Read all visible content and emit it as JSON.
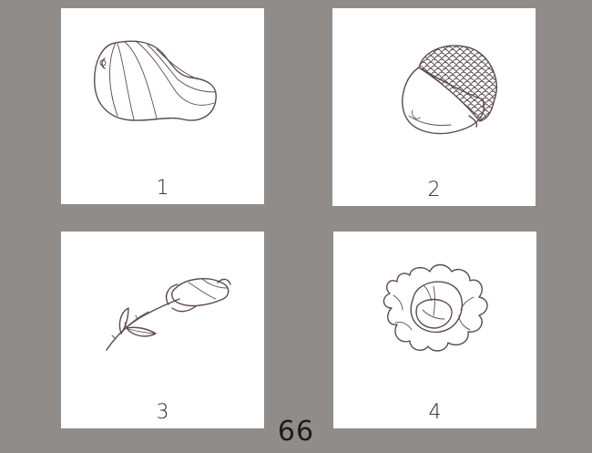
{
  "cards": [
    {
      "number": "1",
      "illustration": "gourd-icon"
    },
    {
      "number": "2",
      "illustration": "acorn-icon"
    },
    {
      "number": "3",
      "illustration": "rosebud-icon"
    },
    {
      "number": "4",
      "illustration": "cabbage-icon"
    }
  ],
  "page_number": "66",
  "colors": {
    "background": "#8f8c8a",
    "card": "#ffffff",
    "ink": "#5a4a4e"
  }
}
